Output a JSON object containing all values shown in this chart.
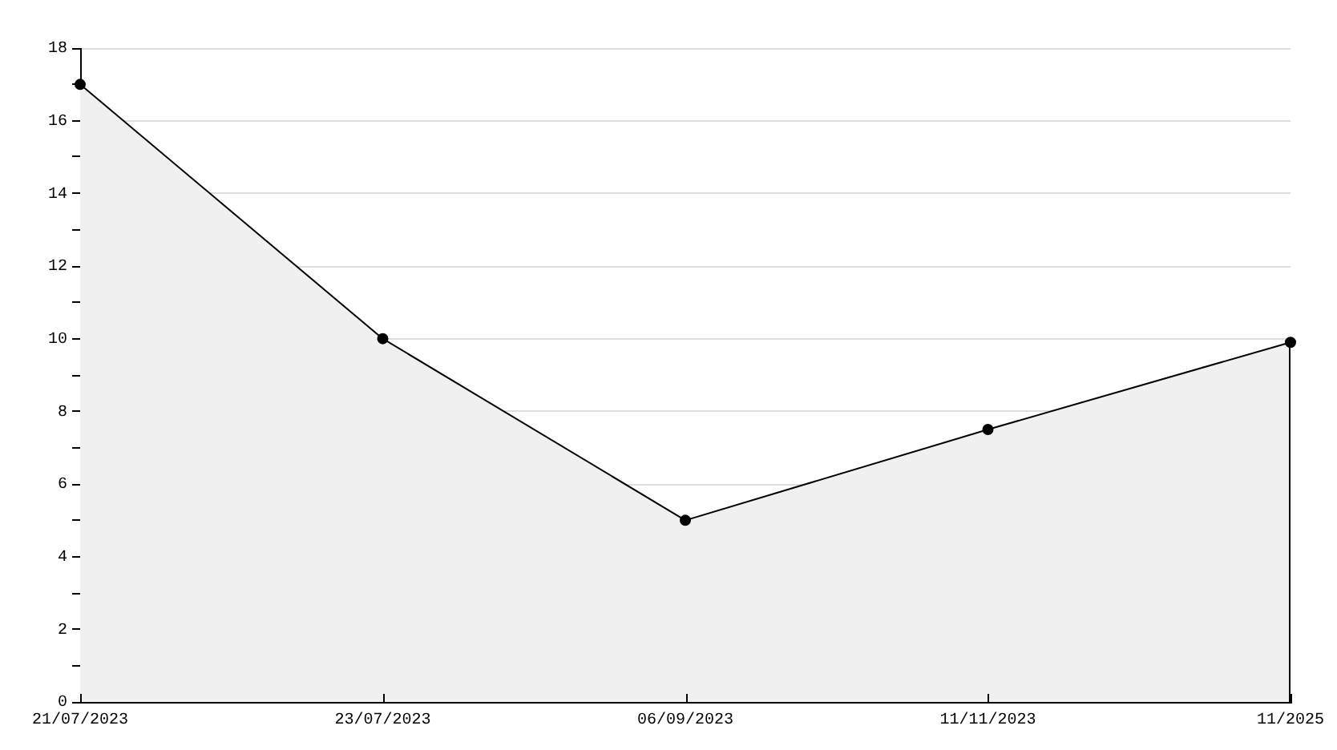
{
  "chart_data": {
    "type": "area",
    "categories": [
      "21/07/2023",
      "23/07/2023",
      "06/09/2023",
      "11/11/2023",
      "11/2025"
    ],
    "values": [
      17,
      10,
      5,
      7.5,
      9.9
    ],
    "color": "#000000",
    "ylim": [
      0,
      18
    ],
    "yticks": [
      0,
      {
        "value": 1,
        "label": null
      },
      2,
      {
        "value": 3,
        "label": null
      },
      4,
      {
        "value": 5,
        "label": null
      },
      6,
      {
        "value": 7,
        "label": null
      },
      8,
      {
        "value": 9,
        "label": null
      },
      10,
      {
        "value": 11,
        "label": null
      },
      12,
      {
        "value": 13,
        "label": null
      },
      14,
      {
        "value": 15,
        "label": null
      },
      16,
      {
        "value": 17,
        "label": null
      },
      18
    ],
    "grid": "y",
    "marker": "circle"
  }
}
